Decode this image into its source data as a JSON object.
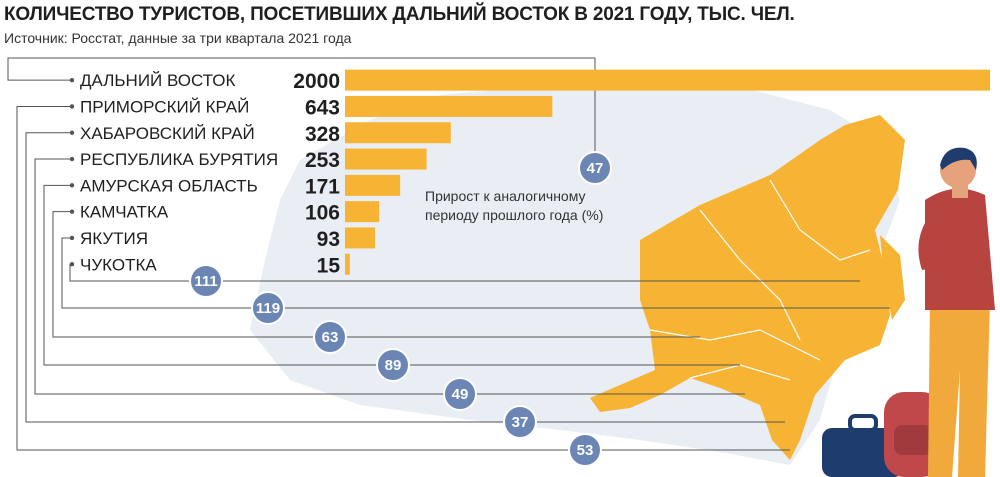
{
  "header": {
    "title": "КОЛИЧЕСТВО ТУРИСТОВ, ПОСЕТИВШИХ ДАЛЬНИЙ ВОСТОК В 2021 ГОДУ, ТЫС. ЧЕЛ.",
    "source": "Источник: Росстат, данные за три квартала 2021 года"
  },
  "legend": {
    "line1": "Прирост к аналогичному",
    "line2": "периоду прошлого года (%)"
  },
  "colors": {
    "bar": "#f7b334",
    "badge": "#6b86b5",
    "map_land": "#e9eef4",
    "map_region": "#f7b334",
    "leader": "#555555"
  },
  "chart_data": {
    "type": "bar",
    "orientation": "horizontal",
    "title": "КОЛИЧЕСТВО ТУРИСТОВ, ПОСЕТИВШИХ ДАЛЬНИЙ ВОСТОК В 2021 ГОДУ, ТЫС. ЧЕЛ.",
    "categories": [
      "ДАЛЬНИЙ ВОСТОК",
      "ПРИМОРСКИЙ КРАЙ",
      "ХАБАРОВСКИЙ КРАЙ",
      "РЕСПУБЛИКА БУРЯТИЯ",
      "АМУРСКАЯ ОБЛАСТЬ",
      "КАМЧАТКА",
      "ЯКУТИЯ",
      "ЧУКОТКА"
    ],
    "values": [
      2000,
      643,
      328,
      253,
      171,
      106,
      93,
      15
    ],
    "growth_percent": [
      47,
      53,
      37,
      49,
      89,
      63,
      119,
      111
    ],
    "xlim": [
      0,
      2000
    ],
    "grid": false,
    "legend": "none"
  }
}
